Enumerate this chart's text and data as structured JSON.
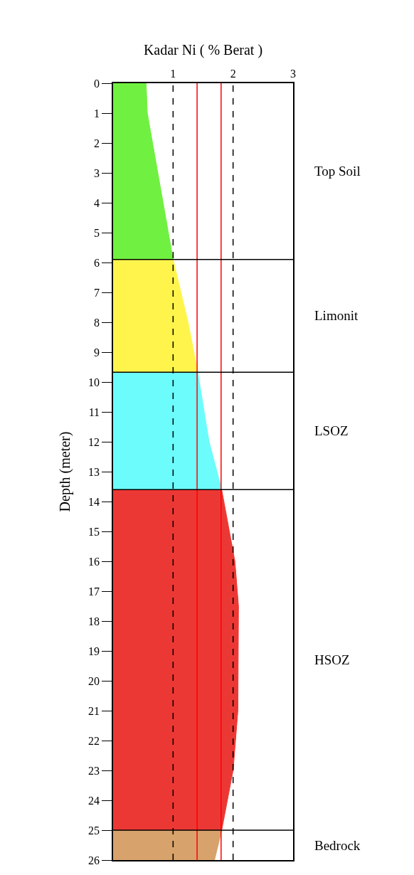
{
  "chart_data": {
    "type": "area",
    "orientation": "horizontal",
    "xlabel": "Kadar Ni ( % Berat )",
    "ylabel": "Depth (meter)",
    "xlim": [
      0,
      3
    ],
    "xticks": [
      1,
      2,
      3
    ],
    "ylim": [
      26,
      0
    ],
    "yticks": [
      0,
      1,
      2,
      3,
      4,
      5,
      6,
      7,
      8,
      9,
      10,
      11,
      12,
      13,
      14,
      15,
      16,
      17,
      18,
      19,
      20,
      21,
      22,
      23,
      24,
      25,
      26
    ],
    "series": [
      {
        "name": "Top Soil",
        "color": "#70f040",
        "x": [
          0,
          1,
          5.9
        ],
        "values": [
          0.55,
          0.57,
          1.0
        ]
      },
      {
        "name": "Limonit",
        "color": "#fff44c",
        "x": [
          5.9,
          8,
          9.67
        ],
        "values": [
          1.0,
          1.25,
          1.41
        ]
      },
      {
        "name": "LSOZ",
        "color": "#6cfcfc",
        "x": [
          9.67,
          12,
          13.6
        ],
        "values": [
          1.41,
          1.6,
          1.81
        ]
      },
      {
        "name": "HSOZ",
        "color": "#ec3834",
        "x": [
          13.6,
          16,
          17.5,
          21,
          23,
          25
        ],
        "values": [
          1.81,
          2.03,
          2.09,
          2.08,
          2.0,
          1.81
        ]
      },
      {
        "name": "Bedrock",
        "color": "#d8a26c",
        "x": [
          25,
          25.5,
          26
        ],
        "values": [
          1.81,
          1.75,
          1.69
        ]
      }
    ],
    "ref_lines": [
      {
        "axis": "x",
        "value": 1,
        "color": "#000000",
        "line_style": "dashed"
      },
      {
        "axis": "x",
        "value": 1.4,
        "color": "#ff0000",
        "line_style": "solid"
      },
      {
        "axis": "x",
        "value": 1.8,
        "color": "#ff0000",
        "line_style": "solid"
      },
      {
        "axis": "x",
        "value": 2,
        "color": "#000000",
        "line_style": "dashed"
      },
      {
        "axis": "y",
        "value": 5.9,
        "color": "#000000",
        "line_style": "solid"
      },
      {
        "axis": "y",
        "value": 9.67,
        "color": "#000000",
        "line_style": "solid"
      },
      {
        "axis": "y",
        "value": 13.6,
        "color": "#000000",
        "line_style": "solid"
      },
      {
        "axis": "y",
        "value": 25,
        "color": "#000000",
        "line_style": "solid"
      }
    ]
  }
}
